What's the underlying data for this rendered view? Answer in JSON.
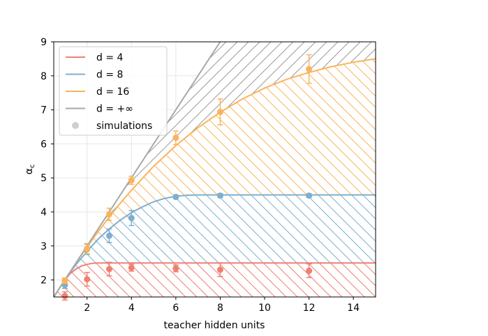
{
  "chart_data": {
    "type": "line",
    "title": "",
    "xlabel": "teacher hidden units",
    "ylabel": "α_c",
    "xlim": [
      0.5,
      15
    ],
    "ylim": [
      1.5,
      9
    ],
    "xticks": [
      2,
      4,
      6,
      8,
      10,
      12,
      14
    ],
    "yticks": [
      2,
      3,
      4,
      5,
      6,
      7,
      8,
      9
    ],
    "grid": true,
    "legend_position": "upper-left",
    "series": [
      {
        "name": "d = 4",
        "color": "#f07f72",
        "curve": {
          "x": [
            0.5,
            0.75,
            1,
            1.25,
            1.5,
            1.75,
            2,
            2.25,
            2.5,
            2.75,
            3,
            3.5,
            4,
            6,
            8,
            10,
            12,
            15
          ],
          "y": [
            1.5,
            1.75,
            2.0,
            2.19,
            2.32,
            2.41,
            2.46,
            2.49,
            2.5,
            2.5,
            2.5,
            2.5,
            2.5,
            2.5,
            2.5,
            2.5,
            2.5,
            2.5
          ]
        },
        "points": {
          "x": [
            1,
            2,
            3,
            4,
            6,
            8,
            12
          ],
          "y": [
            1.53,
            2.02,
            2.32,
            2.36,
            2.34,
            2.3,
            2.27
          ],
          "err": [
            0.12,
            0.2,
            0.2,
            0.1,
            0.1,
            0.2,
            0.2
          ]
        }
      },
      {
        "name": "d = 8",
        "color": "#7fafd0",
        "curve": {
          "x": [
            0.5,
            0.75,
            1,
            1.5,
            2,
            2.5,
            3,
            3.5,
            4,
            4.5,
            5,
            5.5,
            6,
            6.5,
            7,
            8,
            10,
            12,
            15
          ],
          "y": [
            1.5,
            1.75,
            2.0,
            2.45,
            2.84,
            3.2,
            3.5,
            3.76,
            3.98,
            4.15,
            4.3,
            4.4,
            4.46,
            4.49,
            4.5,
            4.5,
            4.5,
            4.5,
            4.5
          ]
        },
        "points": {
          "x": [
            1,
            2,
            3,
            4,
            6,
            8,
            12
          ],
          "y": [
            1.85,
            2.9,
            3.3,
            3.82,
            4.44,
            4.48,
            4.48
          ],
          "err": [
            0.1,
            0.15,
            0.2,
            0.22,
            0.05,
            0.05,
            0.05
          ]
        }
      },
      {
        "name": "d = 16",
        "color": "#f9b45d",
        "curve": {
          "x": [
            0.5,
            0.75,
            1,
            1.5,
            2,
            2.5,
            3,
            3.5,
            4,
            5,
            6,
            7,
            8,
            9,
            10,
            11,
            12,
            13,
            14,
            15
          ],
          "y": [
            1.5,
            1.75,
            2.0,
            2.5,
            2.97,
            3.42,
            3.85,
            4.26,
            4.64,
            5.34,
            5.95,
            6.48,
            6.93,
            7.32,
            7.64,
            7.9,
            8.1,
            8.27,
            8.4,
            8.5
          ]
        },
        "points": {
          "x": [
            1,
            2,
            3,
            4,
            6,
            8,
            12
          ],
          "y": [
            1.98,
            2.92,
            3.93,
            4.93,
            6.18,
            6.94,
            8.2
          ],
          "err": [
            0.08,
            0.15,
            0.18,
            0.12,
            0.2,
            0.38,
            0.42
          ]
        }
      },
      {
        "name": "d = +∞",
        "color": "#a8a8a8",
        "curve": {
          "x": [
            0.5,
            8
          ],
          "y": [
            1.5,
            9
          ]
        }
      }
    ],
    "legend_extra": "simulations"
  }
}
